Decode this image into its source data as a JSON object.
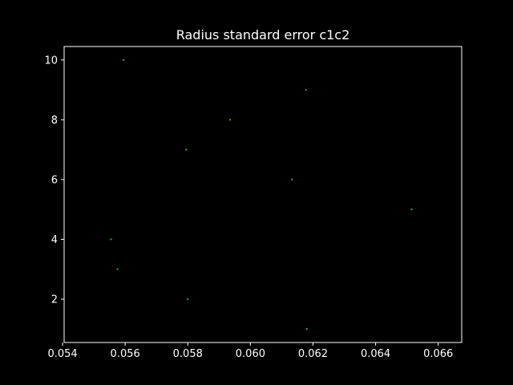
{
  "chart_data": {
    "type": "scatter",
    "title": "Radius standard error c1c2",
    "xlabel": "",
    "ylabel": "",
    "xlim": [
      0.05405,
      0.06675
    ],
    "ylim": [
      0.55,
      10.45
    ],
    "xticks": [
      "0.054",
      "0.056",
      "0.058",
      "0.060",
      "0.062",
      "0.064",
      "0.066"
    ],
    "yticks": [
      "2",
      "4",
      "6",
      "8",
      "10"
    ],
    "xtick_values": [
      0.054,
      0.056,
      0.058,
      0.06,
      0.062,
      0.064,
      0.066
    ],
    "ytick_values": [
      2,
      4,
      6,
      8,
      10
    ],
    "grid": false,
    "background": "#000000",
    "axis_color": "#ffffff",
    "point_color": "#2ca02c",
    "series": [
      {
        "points": [
          {
            "x": 0.0618,
            "y": 1
          },
          {
            "x": 0.058,
            "y": 2
          },
          {
            "x": 0.05575,
            "y": 3
          },
          {
            "x": 0.05555,
            "y": 4
          },
          {
            "x": 0.06515,
            "y": 5
          },
          {
            "x": 0.06133,
            "y": 6
          },
          {
            "x": 0.05795,
            "y": 7
          },
          {
            "x": 0.05935,
            "y": 8
          },
          {
            "x": 0.06178,
            "y": 9
          },
          {
            "x": 0.05595,
            "y": 10
          }
        ]
      }
    ]
  }
}
